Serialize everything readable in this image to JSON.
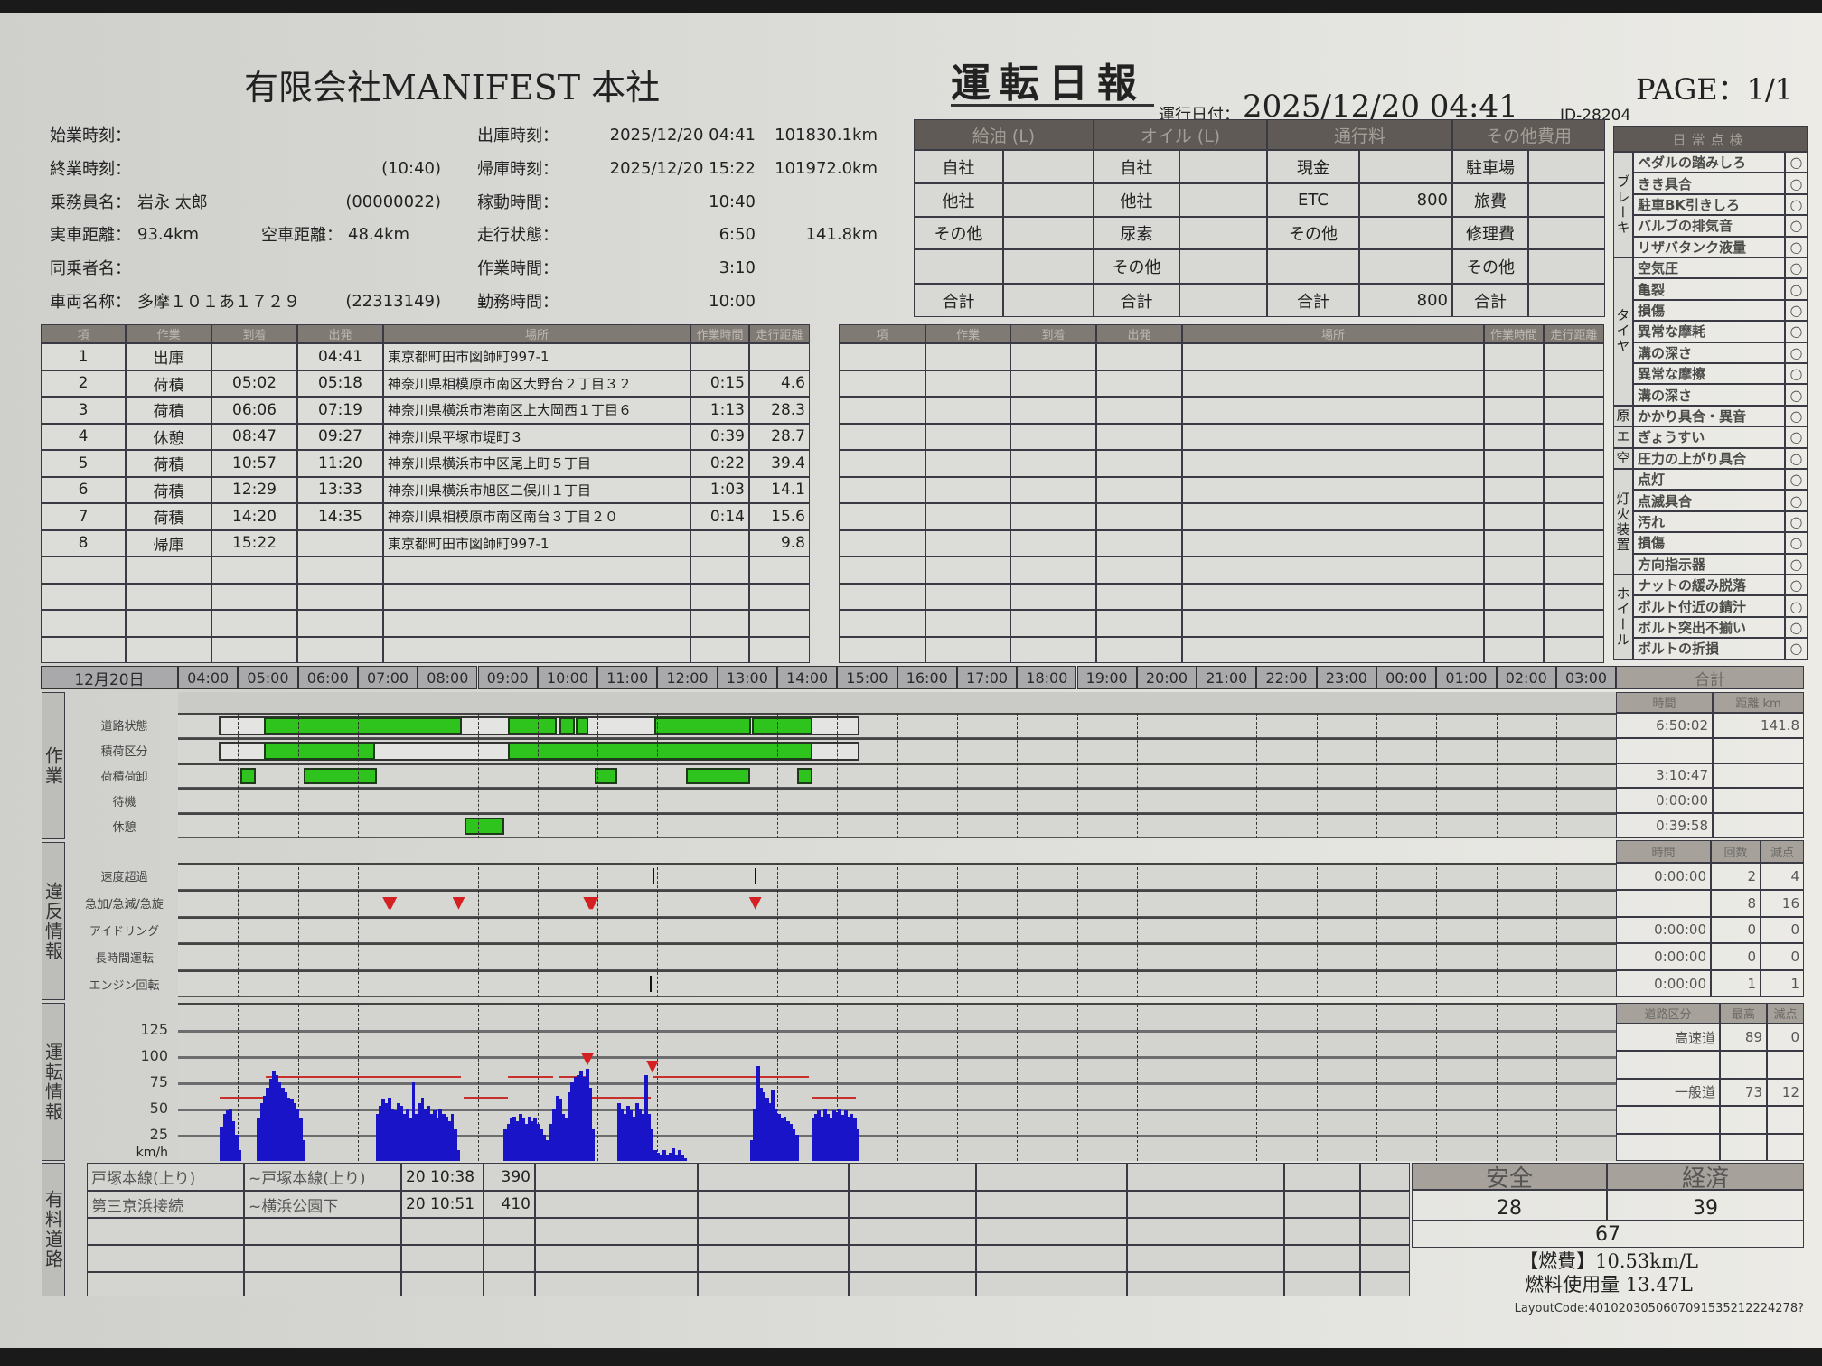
{
  "header": {
    "company": "有限会社MANIFEST 本社",
    "title": "運転日報",
    "date_label": "運行日付：",
    "date": "2025/12/20 04:41",
    "id": "ID-28204",
    "page": "PAGE：1/1"
  },
  "info_left": [
    {
      "label": "始業時刻：",
      "value": "",
      "extra": ""
    },
    {
      "label": "終業時刻：",
      "value": "",
      "extra": "(10:40)"
    },
    {
      "label": "乗務員名：",
      "value": "岩永 太郎",
      "extra": "(00000022)"
    },
    {
      "label": "実車距離：",
      "value": "93.4km",
      "label2": "空車距離：",
      "value2": "48.4km"
    },
    {
      "label": "同乗者名：",
      "value": "",
      "extra": ""
    },
    {
      "label": "車両名称：",
      "value": "多摩１０１あ１７２９",
      "extra": "(22313149)"
    }
  ],
  "info_right": [
    {
      "label": "出庫時刻：",
      "value": "2025/12/20 04:41",
      "extra": "101830.1km"
    },
    {
      "label": "帰庫時刻：",
      "value": "2025/12/20 15:22",
      "extra": "101972.0km"
    },
    {
      "label": "稼動時間：",
      "value": "10:40",
      "extra": ""
    },
    {
      "label": "走行状態：",
      "value": "6:50",
      "extra": "141.8km"
    },
    {
      "label": "作業時間：",
      "value": "3:10",
      "extra": ""
    },
    {
      "label": "勤務時間：",
      "value": "10:00",
      "extra": ""
    }
  ],
  "expenses": [
    {
      "title": "給油 (L)",
      "rows": [
        [
          "自社",
          ""
        ],
        [
          "他社",
          ""
        ],
        [
          "その他",
          ""
        ],
        [
          "",
          ""
        ],
        [
          "合計",
          ""
        ]
      ]
    },
    {
      "title": "オイル (L)",
      "rows": [
        [
          "自社",
          ""
        ],
        [
          "他社",
          ""
        ],
        [
          "尿素",
          ""
        ],
        [
          "その他",
          ""
        ],
        [
          "合計",
          ""
        ]
      ]
    },
    {
      "title": "通行料",
      "rows": [
        [
          "現金",
          ""
        ],
        [
          "ETC",
          "800"
        ],
        [
          "その他",
          ""
        ],
        [
          "",
          ""
        ],
        [
          "合計",
          "800"
        ]
      ]
    },
    {
      "title": "その他費用",
      "rows": [
        [
          "駐車場",
          ""
        ],
        [
          "旅費",
          ""
        ],
        [
          "修理費",
          ""
        ],
        [
          "その他",
          ""
        ],
        [
          "合計",
          ""
        ]
      ]
    }
  ],
  "checklist": {
    "title": "日常点検",
    "mark": "○",
    "groups": [
      {
        "name": "ブレーキ",
        "items": [
          "ペダルの踏みしろ",
          "きき具合",
          "駐車BK引きしろ",
          "バルブの排気音",
          "リザバタンク液量"
        ]
      },
      {
        "name": "タイヤ",
        "items": [
          "空気圧",
          "亀裂",
          "損傷",
          "異常な摩耗",
          "溝の深さ",
          "異常な摩擦",
          "溝の深さ"
        ]
      },
      {
        "name": "原",
        "items": [
          "かかり具合・異音"
        ]
      },
      {
        "name": "エ",
        "items": [
          "ぎょうすい"
        ]
      },
      {
        "name": "空",
        "items": [
          "圧力の上がり具合"
        ]
      },
      {
        "name": "灯火装置",
        "items": [
          "点灯",
          "点滅具合",
          "汚れ",
          "損傷",
          "方向指示器"
        ]
      },
      {
        "name": "ホイール",
        "items": [
          "ナットの緩み脱落",
          "ボルト付近の錆汁",
          "ボルト突出不揃い",
          "ボルトの折損"
        ]
      }
    ]
  },
  "trips": {
    "columns": [
      "項",
      "作業",
      "到着",
      "出発",
      "場所",
      "作業時間",
      "走行距離"
    ],
    "rows": [
      [
        "1",
        "出庫",
        "",
        "04:41",
        "東京都町田市図師町997-1",
        "",
        ""
      ],
      [
        "2",
        "荷積",
        "05:02",
        "05:18",
        "神奈川県相模原市南区大野台２丁目３２",
        "0:15",
        "4.6"
      ],
      [
        "3",
        "荷積",
        "06:06",
        "07:19",
        "神奈川県横浜市港南区上大岡西１丁目６",
        "1:13",
        "28.3"
      ],
      [
        "4",
        "休憩",
        "08:47",
        "09:27",
        "神奈川県平塚市堤町３",
        "0:39",
        "28.7"
      ],
      [
        "5",
        "荷積",
        "10:57",
        "11:20",
        "神奈川県横浜市中区尾上町５丁目",
        "0:22",
        "39.4"
      ],
      [
        "6",
        "荷積",
        "12:29",
        "13:33",
        "神奈川県横浜市旭区二俣川１丁目",
        "1:03",
        "14.1"
      ],
      [
        "7",
        "荷積",
        "14:20",
        "14:35",
        "神奈川県相模原市南区南台３丁目２０",
        "0:14",
        "15.6"
      ],
      [
        "8",
        "帰庫",
        "15:22",
        "",
        "東京都町田市図師町997-1",
        "",
        "9.8"
      ]
    ]
  },
  "timeline": {
    "date": "12月20日",
    "hours": [
      "04:00",
      "05:00",
      "06:00",
      "07:00",
      "08:00",
      "09:00",
      "10:00",
      "11:00",
      "12:00",
      "13:00",
      "14:00",
      "15:00",
      "16:00",
      "17:00",
      "18:00",
      "19:00",
      "20:00",
      "21:00",
      "22:00",
      "23:00",
      "00:00",
      "01:00",
      "02:00",
      "03:00"
    ],
    "total_label": "合計"
  },
  "sections": {
    "work": "作業",
    "violation": "違反情報",
    "driving": "運転情報",
    "toll": "有料道路"
  },
  "work": {
    "summary_headers": [
      "時間",
      "距離 km"
    ],
    "rows": [
      {
        "label": "道路状態",
        "outline": [
          "04:41",
          "15:22"
        ],
        "bars": [
          [
            "05:26",
            "08:44"
          ],
          [
            "09:30",
            "10:19"
          ],
          [
            "10:22",
            "10:37"
          ],
          [
            "10:38",
            "10:51"
          ],
          [
            "11:57",
            "13:34"
          ],
          [
            "13:35",
            "14:35"
          ]
        ],
        "time": "6:50:02",
        "dist": "141.8"
      },
      {
        "label": "積荷区分",
        "outline": [
          "04:41",
          "15:22"
        ],
        "bars": [
          [
            "05:26",
            "07:17"
          ],
          [
            "09:30",
            "14:35"
          ]
        ],
        "time": "",
        "dist": ""
      },
      {
        "label": "荷積荷卸",
        "bars": [
          [
            "05:02",
            "05:18"
          ],
          [
            "06:06",
            "07:19"
          ],
          [
            "10:57",
            "11:20"
          ],
          [
            "12:29",
            "13:33"
          ],
          [
            "14:20",
            "14:35"
          ]
        ],
        "time": "3:10:47",
        "dist": ""
      },
      {
        "label": "待機",
        "bars": [],
        "time": "0:00:00",
        "dist": ""
      },
      {
        "label": "休憩",
        "bars": [
          [
            "08:47",
            "09:27"
          ]
        ],
        "time": "0:39:58",
        "dist": ""
      }
    ]
  },
  "violations": {
    "summary_headers": [
      "時間",
      "回数",
      "減点"
    ],
    "rows": [
      {
        "label": "速度超過",
        "ticks": [
          "11:55",
          "13:37"
        ],
        "marks": [],
        "time": "0:00:00",
        "count": "2",
        "points": "4"
      },
      {
        "label": "急加/急減/急旋",
        "ticks": [],
        "marks": [
          "07:31",
          "07:33",
          "08:41",
          "10:52",
          "10:53",
          "10:54",
          "10:55",
          "13:38"
        ],
        "time": "",
        "count": "8",
        "points": "16"
      },
      {
        "label": "アイドリング",
        "ticks": [],
        "marks": [],
        "time": "0:00:00",
        "count": "0",
        "points": "0"
      },
      {
        "label": "長時間運転",
        "ticks": [],
        "marks": [],
        "time": "0:00:00",
        "count": "0",
        "points": "0"
      },
      {
        "label": "エンジン回転",
        "ticks": [
          "11:52"
        ],
        "marks": [],
        "time": "0:00:00",
        "count": "1",
        "points": "1"
      }
    ]
  },
  "chart_data": {
    "type": "bar",
    "ylabel": "km/h",
    "ylim": [
      0,
      150
    ],
    "yticks": [
      "125",
      "100",
      "75",
      "50",
      "25"
    ],
    "sample_interval_min": 3,
    "series": [
      {
        "start": "04:42",
        "values": [
          32,
          45,
          48,
          50,
          38,
          25,
          10
        ]
      },
      {
        "start": "05:19",
        "values": [
          40,
          55,
          62,
          70,
          78,
          86,
          82,
          75,
          70,
          65,
          60,
          58,
          55,
          50,
          40,
          20
        ]
      },
      {
        "start": "07:18",
        "values": [
          45,
          52,
          58,
          55,
          60,
          50,
          48,
          55,
          52,
          45,
          50,
          40,
          75,
          45,
          55,
          60,
          50,
          52,
          45,
          48,
          40,
          50,
          45,
          42,
          38,
          45,
          30,
          10
        ]
      },
      {
        "start": "09:26",
        "values": [
          30,
          35,
          40,
          42,
          38,
          45,
          40,
          35,
          42,
          38,
          40,
          35,
          30,
          25,
          20
        ]
      },
      {
        "start": "10:12",
        "values": [
          35,
          50,
          62,
          58,
          45,
          40,
          65,
          75,
          80,
          82,
          85,
          80,
          88,
          70,
          30
        ]
      },
      {
        "start": "11:20",
        "values": [
          55,
          50,
          45,
          52,
          48,
          42,
          55,
          50,
          45,
          82,
          45,
          30,
          10,
          8,
          6,
          10,
          5,
          8,
          12,
          6,
          10,
          5,
          3
        ]
      },
      {
        "start": "13:33",
        "values": [
          20,
          50,
          90,
          70,
          65,
          60,
          55,
          68,
          50,
          45,
          40,
          42,
          38,
          35,
          30,
          25
        ]
      },
      {
        "start": "14:34",
        "values": [
          40,
          45,
          48,
          42,
          50,
          45,
          40,
          48,
          46,
          50,
          44,
          48,
          42,
          45,
          40,
          30
        ]
      }
    ],
    "limits": [
      {
        "from": "04:42",
        "to": "05:25",
        "kmh": 60
      },
      {
        "from": "05:28",
        "to": "08:43",
        "kmh": 80
      },
      {
        "from": "08:46",
        "to": "09:30",
        "kmh": 60
      },
      {
        "from": "09:30",
        "to": "10:16",
        "kmh": 80
      },
      {
        "from": "10:22",
        "to": "10:50",
        "kmh": 80
      },
      {
        "from": "10:52",
        "to": "11:53",
        "kmh": 60
      },
      {
        "from": "11:56",
        "to": "14:32",
        "kmh": 80
      },
      {
        "from": "14:34",
        "to": "15:19",
        "kmh": 60
      }
    ],
    "peak_markers": [
      {
        "time": "10:50",
        "kmh": 89
      },
      {
        "time": "11:55",
        "kmh": 82
      }
    ],
    "colors": {
      "bar": "#1a14c8",
      "limit": "#c8302c",
      "marker": "#d42020"
    }
  },
  "speed_summary": {
    "headers": [
      "道路区分",
      "最高",
      "減点"
    ],
    "rows": [
      [
        "高速道",
        "89",
        "0"
      ],
      [
        "",
        "",
        ""
      ],
      [
        "一般道",
        "73",
        "12"
      ],
      [
        "",
        "",
        ""
      ],
      [
        "",
        "",
        ""
      ]
    ]
  },
  "toll": {
    "rows": [
      [
        "戸塚本線(上り)",
        "~戸塚本線(上り)",
        "20 10:38",
        "390"
      ],
      [
        "第三京浜接続",
        "~横浜公園下",
        "20 10:51",
        "410"
      ],
      [
        "",
        "",
        "",
        ""
      ],
      [
        "",
        "",
        "",
        ""
      ],
      [
        "",
        "",
        "",
        ""
      ]
    ]
  },
  "score": {
    "safety_label": "安全",
    "economy_label": "経済",
    "safety": "28",
    "economy": "39",
    "total": "67"
  },
  "fuel": {
    "efficiency": "【燃費】10.53km/L",
    "usage": "燃料使用量 13.47L"
  },
  "layout_code": "LayoutCode:4010203050607091535212224278?"
}
